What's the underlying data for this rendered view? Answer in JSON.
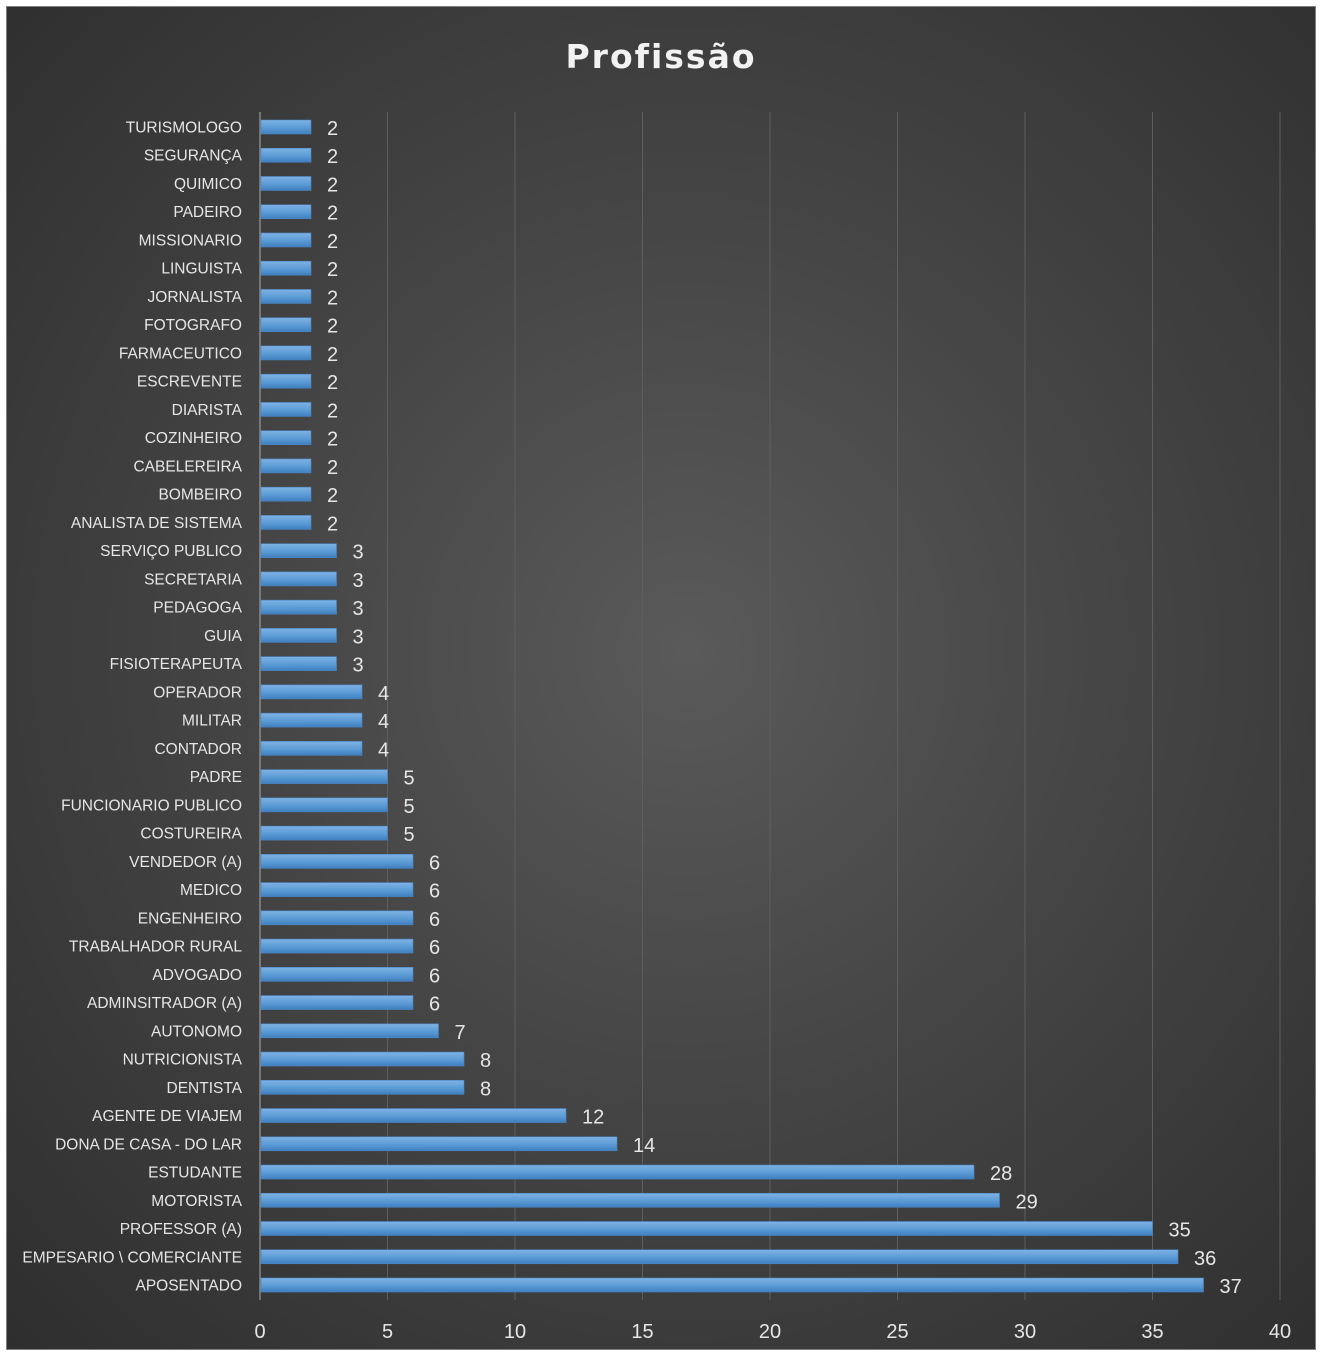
{
  "chart_data": {
    "type": "bar",
    "orientation": "horizontal",
    "title": "Profissão",
    "xlabel": "",
    "ylabel": "",
    "xlim": [
      0,
      40
    ],
    "xticks": [
      0,
      5,
      10,
      15,
      20,
      25,
      30,
      35,
      40
    ],
    "grid": true,
    "legend": "none",
    "bar_color": "#5b9bd5",
    "background_color": "#404040",
    "categories": [
      "APOSENTADO",
      "EMPESARIO \\ COMERCIANTE",
      "PROFESSOR (A)",
      "MOTORISTA",
      "ESTUDANTE",
      "DONA DE CASA - DO LAR",
      "AGENTE DE VIAJEM",
      "DENTISTA",
      "NUTRICIONISTA",
      "AUTONOMO",
      "ADMINSITRADOR (A)",
      "ADVOGADO",
      "TRABALHADOR RURAL",
      "ENGENHEIRO",
      "MEDICO",
      "VENDEDOR (A)",
      "COSTUREIRA",
      "FUNCIONARIO PUBLICO",
      "PADRE",
      "CONTADOR",
      "MILITAR",
      "OPERADOR",
      "FISIOTERAPEUTA",
      "GUIA",
      "PEDAGOGA",
      "SECRETARIA",
      "SERVIÇO PUBLICO",
      "ANALISTA DE SISTEMA",
      "BOMBEIRO",
      "CABELEREIRA",
      "COZINHEIRO",
      "DIARISTA",
      "ESCREVENTE",
      "FARMACEUTICO",
      "FOTOGRAFO",
      "JORNALISTA",
      "LINGUISTA",
      "MISSIONARIO",
      "PADEIRO",
      "QUIMICO",
      "SEGURANÇA",
      "TURISMOLOGO"
    ],
    "values": [
      37,
      36,
      35,
      29,
      28,
      14,
      12,
      8,
      8,
      7,
      6,
      6,
      6,
      6,
      6,
      6,
      5,
      5,
      5,
      4,
      4,
      4,
      3,
      3,
      3,
      3,
      3,
      2,
      2,
      2,
      2,
      2,
      2,
      2,
      2,
      2,
      2,
      2,
      2,
      2,
      2,
      2
    ]
  }
}
